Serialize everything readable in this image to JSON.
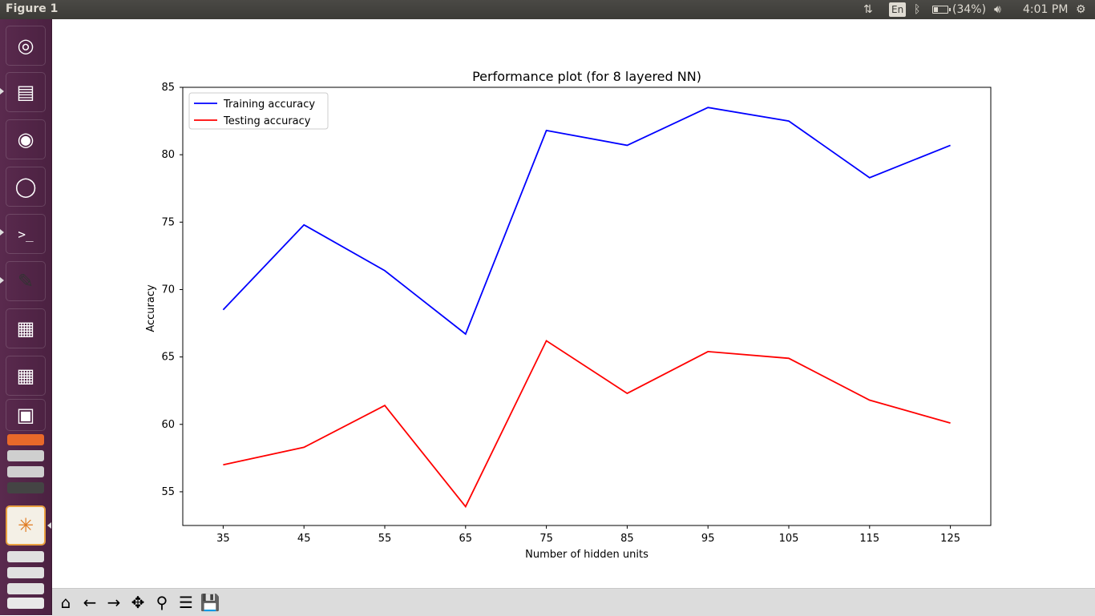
{
  "window": {
    "title": "Figure 1"
  },
  "top_panel": {
    "keyboard_layout": "En",
    "battery_text": "(34%)",
    "battery_level": 0.34,
    "clock": "4:01 PM"
  },
  "launcher": {
    "items": [
      {
        "name": "ubuntu-dash-icon",
        "color": "#9a3a86"
      },
      {
        "name": "files-icon",
        "color": "#8a7b64"
      },
      {
        "name": "firefox-icon",
        "color": "#d8602a"
      },
      {
        "name": "chromium-icon",
        "color": "#3c7fc9"
      },
      {
        "name": "terminal-icon",
        "color": "#2c2c2c"
      },
      {
        "name": "text-editor-icon",
        "color": "#d9d9d9"
      },
      {
        "name": "writer-icon",
        "color": "#2a5a9c"
      },
      {
        "name": "calc-icon",
        "color": "#3e8e3e"
      },
      {
        "name": "impress-icon",
        "color": "#b24e2a"
      },
      {
        "name": "app-icon",
        "color": "#f0f0f0"
      }
    ]
  },
  "chart_data": {
    "type": "line",
    "title": "Performance plot (for 8 layered NN)",
    "xlabel": "Number of hidden units",
    "ylabel": "Accuracy",
    "x": [
      35,
      45,
      55,
      65,
      75,
      85,
      95,
      105,
      115,
      125
    ],
    "x_ticks": [
      "35",
      "45",
      "55",
      "65",
      "75",
      "85",
      "95",
      "105",
      "115",
      "125"
    ],
    "xlim": [
      30,
      130
    ],
    "ylim": [
      52.5,
      85
    ],
    "y_ticks": [
      "55",
      "60",
      "65",
      "70",
      "75",
      "80",
      "85"
    ],
    "grid": false,
    "legend_position": "top-left",
    "series": [
      {
        "name": "Training accuracy",
        "color": "#0000ff",
        "values": [
          68.5,
          74.8,
          71.4,
          66.7,
          81.8,
          80.7,
          83.5,
          82.5,
          78.3,
          80.7
        ]
      },
      {
        "name": "Testing accuracy",
        "color": "#ff0000",
        "values": [
          57.0,
          58.3,
          61.4,
          53.9,
          66.2,
          62.3,
          65.4,
          64.9,
          61.8,
          60.1
        ]
      }
    ]
  },
  "toolbar": {
    "buttons": [
      {
        "name": "home-button",
        "icon": "home-icon",
        "glyph": "⌂"
      },
      {
        "name": "back-button",
        "icon": "arrow-left-icon",
        "glyph": "←"
      },
      {
        "name": "forward-button",
        "icon": "arrow-right-icon",
        "glyph": "→"
      },
      {
        "name": "pan-button",
        "icon": "move-icon",
        "glyph": "✥"
      },
      {
        "name": "zoom-button",
        "icon": "magnifier-icon",
        "glyph": "⚲"
      },
      {
        "name": "configure-subplots-button",
        "icon": "sliders-icon",
        "glyph": "☰"
      },
      {
        "name": "save-button",
        "icon": "floppy-disk-icon",
        "glyph": "💾"
      }
    ]
  }
}
